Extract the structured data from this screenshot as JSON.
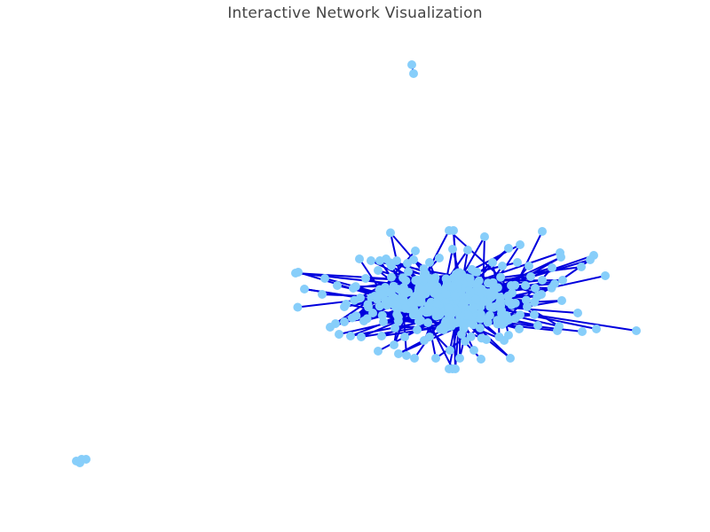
{
  "title": "Interactive Network Visualization",
  "colors": {
    "edge": "#0000dd",
    "node": "#87cefa",
    "background": "#ffffff",
    "title": "#444444"
  },
  "chart_data": {
    "type": "network",
    "title": "Interactive Network Visualization",
    "legend": "none",
    "grid": false,
    "axes": "hidden"
  }
}
